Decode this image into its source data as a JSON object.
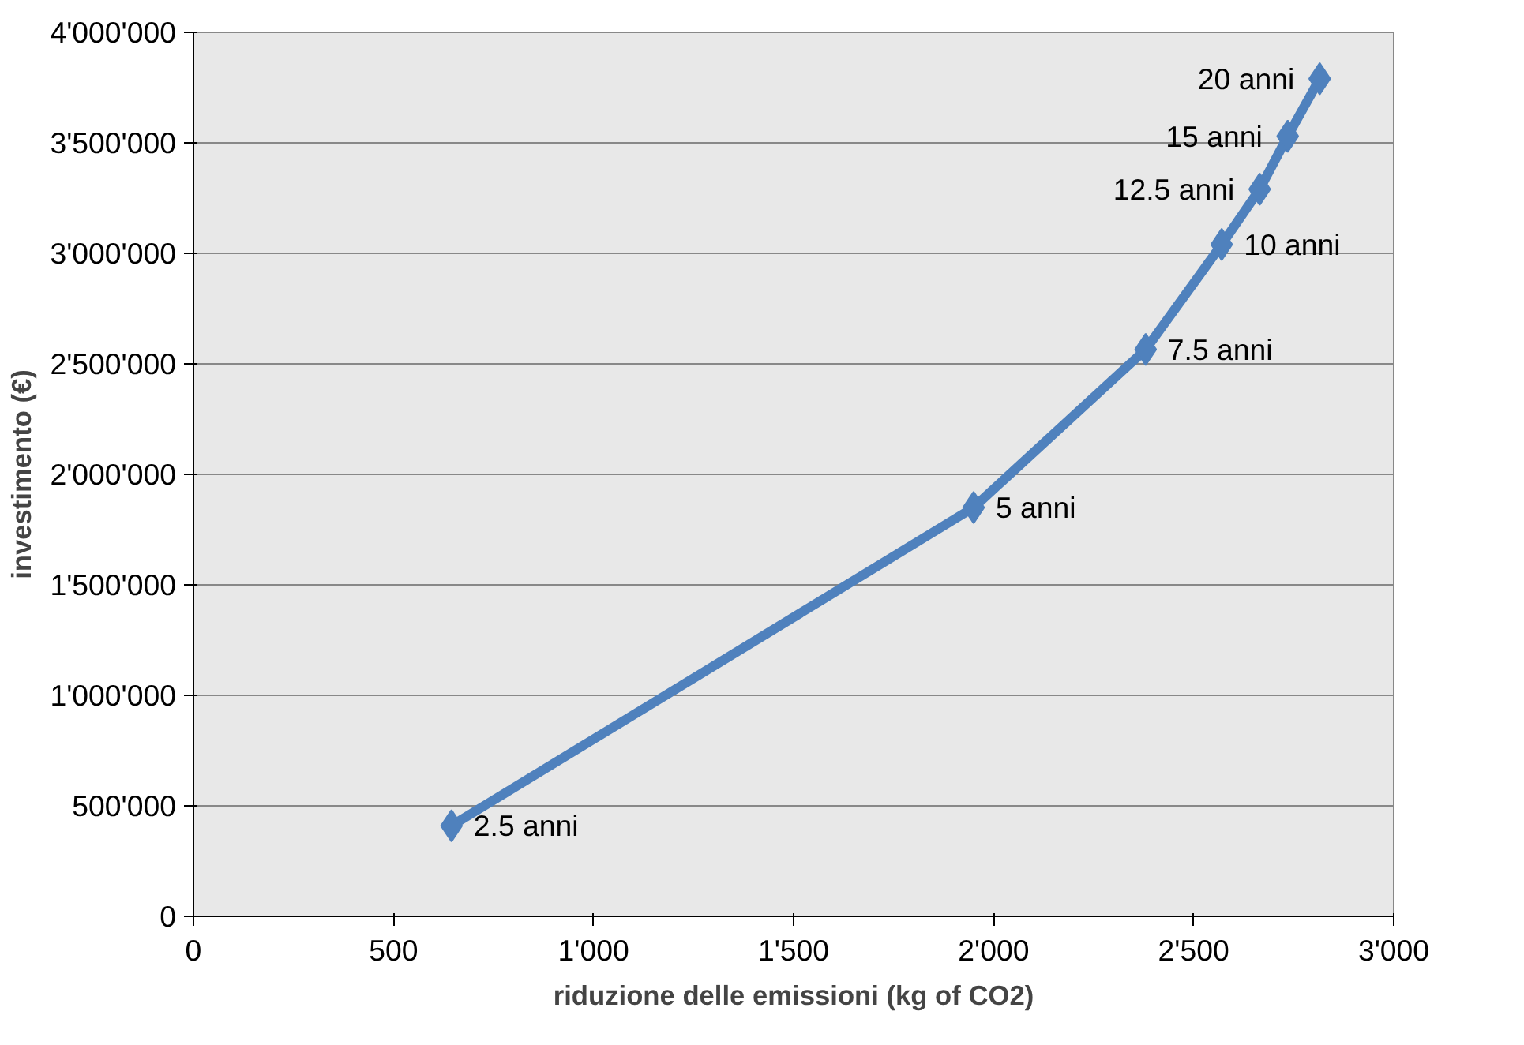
{
  "chart_data": {
    "type": "line",
    "xlabel": "riduzione delle emissioni (kg of CO2)",
    "ylabel": "investimento (€)",
    "x": [
      645,
      1950,
      2380,
      2570,
      2665,
      2735,
      2815
    ],
    "series": [
      {
        "color": "#4f81bd",
        "values": [
          410000,
          1850000,
          2565000,
          3040000,
          3290000,
          3530000,
          3790000
        ]
      }
    ],
    "marker": "diamond",
    "line_style": "solid",
    "grid": "y",
    "xlim": [
      0,
      3000
    ],
    "xticks": [
      0,
      500,
      {
        "value": 1000,
        "label": "1'000"
      },
      {
        "value": 1500,
        "label": "1'500"
      },
      {
        "value": 2000,
        "label": "2'000"
      },
      {
        "value": 2500,
        "label": "2'500"
      },
      {
        "value": 3000,
        "label": "3'000"
      }
    ],
    "ylim": [
      0,
      4000000
    ],
    "yticks": [
      0,
      {
        "value": 500000,
        "label": "500'000"
      },
      {
        "value": 1000000,
        "label": "1'000'000"
      },
      {
        "value": 1500000,
        "label": "1'500'000"
      },
      {
        "value": 2000000,
        "label": "2'000'000"
      },
      {
        "value": 2500000,
        "label": "2'500'000"
      },
      {
        "value": 3000000,
        "label": "3'000'000"
      },
      {
        "value": 3500000,
        "label": "3'500'000"
      },
      {
        "value": 4000000,
        "label": "4'000'000"
      }
    ],
    "annotations": [
      {
        "text": "2.5 anni",
        "x": 645,
        "y": 410000
      },
      {
        "text": "5 anni",
        "x": 1950,
        "y": 1850000
      },
      {
        "text": "7.5 anni",
        "x": 2380,
        "y": 2565000
      },
      {
        "text": "10 anni",
        "x": 2570,
        "y": 3040000
      },
      {
        "text": "12.5 anni",
        "x": 2665,
        "y": 3290000
      },
      {
        "text": "15 anni",
        "x": 2735,
        "y": 3530000
      },
      {
        "text": "20 anni",
        "x": 2815,
        "y": 3790000
      }
    ]
  }
}
